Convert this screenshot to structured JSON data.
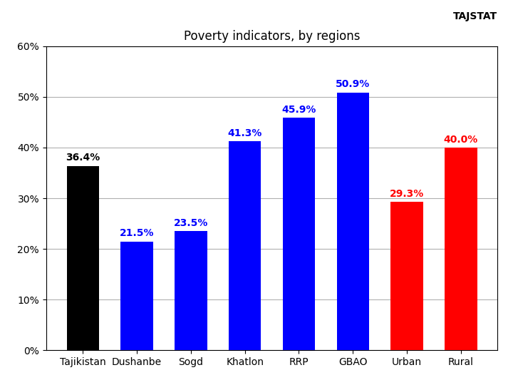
{
  "chart_data": {
    "type": "bar",
    "title": "Poverty indicators, by regions",
    "categories": [
      "Tajikistan",
      "Dushanbe",
      "Sogd",
      "Khatlon",
      "RRP",
      "GBAO",
      "Urban",
      "Rural"
    ],
    "values": [
      36.4,
      21.5,
      23.5,
      41.3,
      45.9,
      50.9,
      29.3,
      40.0
    ],
    "value_labels": [
      "36.4%",
      "21.5%",
      "23.5%",
      "41.3%",
      "45.9%",
      "50.9%",
      "29.3%",
      "40.0%"
    ],
    "colors": [
      "#000000",
      "#0000FF",
      "#0000FF",
      "#0000FF",
      "#0000FF",
      "#0000FF",
      "#FF0000",
      "#FF0000"
    ],
    "ylim": [
      0,
      60
    ],
    "yticks": [
      {
        "value": 0,
        "label": "0%"
      },
      {
        "value": 10,
        "label": "10%"
      },
      {
        "value": 20,
        "label": "20%"
      },
      {
        "value": 30,
        "label": "30%"
      },
      {
        "value": 40,
        "label": "40%"
      },
      {
        "value": 50,
        "label": "50%"
      },
      {
        "value": 60,
        "label": "60%"
      }
    ],
    "grid": true,
    "data_labels": true,
    "annotations": [
      "TAJSTAT"
    ]
  }
}
